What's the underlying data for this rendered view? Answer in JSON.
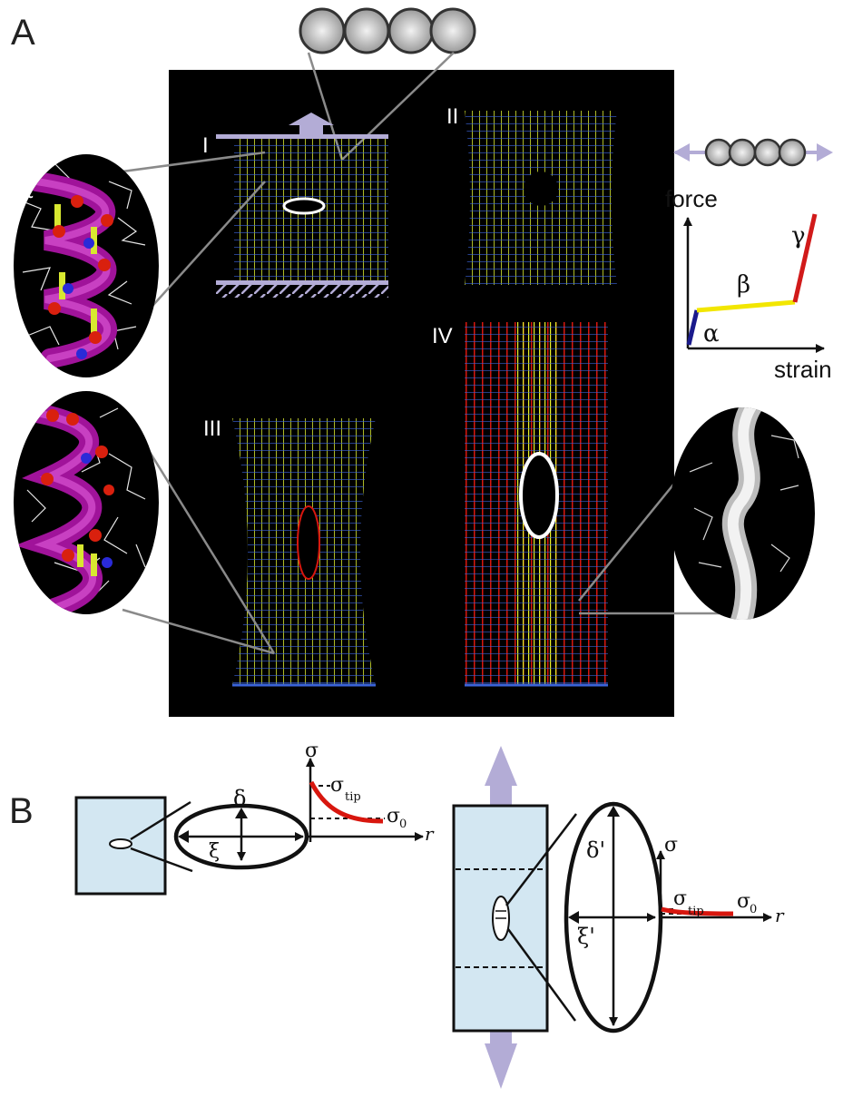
{
  "panel_a": {
    "letter": "A",
    "stages": [
      "I",
      "II",
      "III",
      "IV"
    ],
    "helix_labels": {
      "alpha": "α",
      "beta": "β",
      "gamma": "γ"
    },
    "curve": {
      "ylabel": "force",
      "xlabel": "strain",
      "segments": [
        {
          "label": "α",
          "color": "#1a1a8c"
        },
        {
          "label": "β",
          "color": "#f2e600"
        },
        {
          "label": "γ",
          "color": "#d11a1a"
        }
      ]
    },
    "colors": {
      "background": "#000000",
      "soft": "#3a63d8",
      "mid": "#d8e830",
      "stiff": "#d8160e",
      "arrow": "#b3acd6"
    }
  },
  "panel_b": {
    "letter": "B",
    "small": {
      "delta": "δ",
      "xi": "ξ",
      "sigma": "σ",
      "sigma_tip": "σ",
      "tip_sub": "tip",
      "sigma_0": "σ",
      "zero_sub": "0",
      "r": "r"
    },
    "large": {
      "delta": "δ'",
      "xi": "ξ'",
      "sigma": "σ",
      "sigma_tip": "σ",
      "tip_sub": "tip",
      "sigma_0": "σ",
      "zero_sub": "0",
      "r": "r"
    },
    "colors": {
      "box": "#d3e7f2",
      "curve": "#d8160e",
      "arrow": "#b3acd6"
    }
  }
}
